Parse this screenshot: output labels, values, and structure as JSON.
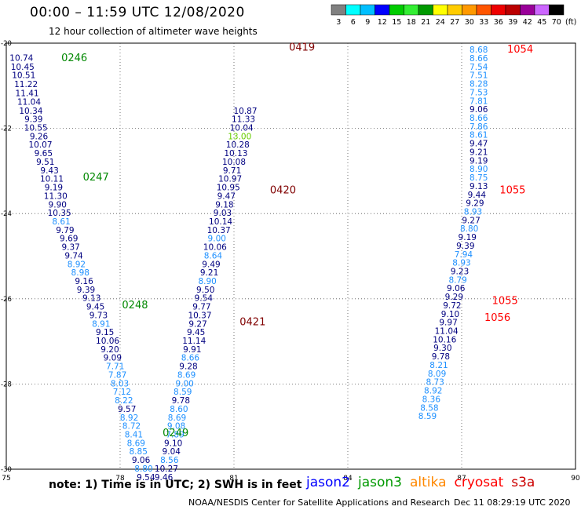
{
  "header": {
    "title": "00:00 – 11:59 UTC 12/08/2020",
    "subtitle": "12 hour collection of altimeter wave heights"
  },
  "color_scale": {
    "labels": [
      "3",
      "6",
      "9",
      "12",
      "15",
      "18",
      "21",
      "24",
      "27",
      "30",
      "33",
      "36",
      "39",
      "42",
      "45",
      "70"
    ],
    "unit": "(ft)",
    "colors": [
      "#808080",
      "#00ffff",
      "#00bfff",
      "#0000ff",
      "#00cc00",
      "#33ee33",
      "#009900",
      "#ffff00",
      "#ffcc00",
      "#ff9900",
      "#ff5500",
      "#ee0000",
      "#bb0000",
      "#990099",
      "#cc66ff",
      "#000000"
    ]
  },
  "footer": {
    "note": "note: 1) Time is in UTC; 2) SWH is in feet",
    "satellites": [
      {
        "name": "jason2",
        "color": "#0000ff"
      },
      {
        "name": "jason3",
        "color": "#009900"
      },
      {
        "name": "altika",
        "color": "#ff8800"
      },
      {
        "name": "cryosat",
        "color": "#ff0000"
      },
      {
        "name": "s3a",
        "color": "#cc0000"
      }
    ],
    "credit": "NOAA/NESDIS Center for Satellite Applications and Research",
    "processed": "Dec 11 08:29:19 UTC 2020"
  },
  "chart_data": {
    "type": "scatter",
    "xlim": [
      75,
      90
    ],
    "ylim": [
      -30,
      -20
    ],
    "xticks": [
      "75",
      "78",
      "81",
      "84",
      "87",
      "90"
    ],
    "yticks": [
      "-20",
      "-22",
      "-24",
      "-26",
      "-28",
      "-30"
    ],
    "grid": true,
    "tracks": [
      {
        "name": "0246-0249 pass",
        "color": "#000080",
        "points": [
          {
            "x": 75.4,
            "y": -20.34,
            "v": "10.74"
          },
          {
            "x": 75.43,
            "y": -20.55,
            "v": "10.45"
          },
          {
            "x": 75.46,
            "y": -20.75,
            "v": "10.51"
          },
          {
            "x": 75.52,
            "y": -20.96,
            "v": "11.22"
          },
          {
            "x": 75.55,
            "y": -21.17,
            "v": "11.41"
          },
          {
            "x": 75.6,
            "y": -21.37,
            "v": "11.04"
          },
          {
            "x": 75.65,
            "y": -21.58,
            "v": "10.34"
          },
          {
            "x": 75.72,
            "y": -21.78,
            "v": "9.39"
          },
          {
            "x": 75.78,
            "y": -21.98,
            "v": "10.55"
          },
          {
            "x": 75.86,
            "y": -22.18,
            "v": "9.26"
          },
          {
            "x": 75.9,
            "y": -22.38,
            "v": "10.07"
          },
          {
            "x": 75.98,
            "y": -22.58,
            "v": "9.65"
          },
          {
            "x": 76.03,
            "y": -22.78,
            "v": "9.51"
          },
          {
            "x": 76.14,
            "y": -22.98,
            "v": "9.43"
          },
          {
            "x": 76.2,
            "y": -23.18,
            "v": "10.11"
          },
          {
            "x": 76.25,
            "y": -23.38,
            "v": "9.19"
          },
          {
            "x": 76.3,
            "y": -23.58,
            "v": "11.30"
          },
          {
            "x": 76.35,
            "y": -23.78,
            "v": "9.90"
          },
          {
            "x": 76.4,
            "y": -23.98,
            "v": "10.35"
          },
          {
            "x": 76.45,
            "y": -24.18,
            "v": "8.61",
            "c": "#1e90ff"
          },
          {
            "x": 76.55,
            "y": -24.38,
            "v": "9.79"
          },
          {
            "x": 76.65,
            "y": -24.58,
            "v": "9.69"
          },
          {
            "x": 76.7,
            "y": -24.78,
            "v": "9.37"
          },
          {
            "x": 76.78,
            "y": -24.98,
            "v": "9.74"
          },
          {
            "x": 76.85,
            "y": -25.18,
            "v": "8.92",
            "c": "#1e90ff"
          },
          {
            "x": 76.95,
            "y": -25.38,
            "v": "8.98",
            "c": "#1e90ff"
          },
          {
            "x": 77.05,
            "y": -25.58,
            "v": "9.16"
          },
          {
            "x": 77.1,
            "y": -25.78,
            "v": "9.39"
          },
          {
            "x": 77.25,
            "y": -25.98,
            "v": "9.13"
          },
          {
            "x": 77.35,
            "y": -26.18,
            "v": "9.45"
          },
          {
            "x": 77.43,
            "y": -26.38,
            "v": "9.73"
          },
          {
            "x": 77.5,
            "y": -26.58,
            "v": "8.91",
            "c": "#1e90ff"
          },
          {
            "x": 77.6,
            "y": -26.78,
            "v": "9.15"
          },
          {
            "x": 77.67,
            "y": -26.98,
            "v": "10.06"
          },
          {
            "x": 77.73,
            "y": -27.18,
            "v": "9.20"
          },
          {
            "x": 77.8,
            "y": -27.38,
            "v": "9.09"
          },
          {
            "x": 77.87,
            "y": -27.58,
            "v": "7.71",
            "c": "#1e90ff"
          },
          {
            "x": 77.93,
            "y": -27.78,
            "v": "7.87",
            "c": "#1e90ff"
          },
          {
            "x": 77.99,
            "y": -27.98,
            "v": "8.03",
            "c": "#1e90ff"
          },
          {
            "x": 78.05,
            "y": -28.18,
            "v": "7.12",
            "c": "#1e90ff"
          },
          {
            "x": 78.1,
            "y": -28.38,
            "v": "8.22",
            "c": "#1e90ff"
          },
          {
            "x": 78.18,
            "y": -28.58,
            "v": "9.57"
          },
          {
            "x": 78.24,
            "y": -28.78,
            "v": "8.92",
            "c": "#1e90ff"
          },
          {
            "x": 78.3,
            "y": -28.98,
            "v": "8.72",
            "c": "#1e90ff"
          },
          {
            "x": 78.36,
            "y": -29.18,
            "v": "8.41",
            "c": "#1e90ff"
          },
          {
            "x": 78.42,
            "y": -29.38,
            "v": "8.69",
            "c": "#1e90ff"
          },
          {
            "x": 78.48,
            "y": -29.58,
            "v": "8.85",
            "c": "#1e90ff"
          },
          {
            "x": 78.55,
            "y": -29.78,
            "v": "9.06"
          },
          {
            "x": 78.62,
            "y": -29.98,
            "v": "8.80",
            "c": "#1e90ff"
          },
          {
            "x": 78.68,
            "y": -30.18,
            "v": "9.54"
          }
        ]
      },
      {
        "name": "0419-0421 pass",
        "color": "#000080",
        "points": [
          {
            "x": 79.15,
            "y": -30.18,
            "v": "9.46"
          },
          {
            "x": 79.22,
            "y": -29.98,
            "v": "10.27"
          },
          {
            "x": 79.3,
            "y": -29.78,
            "v": "8.56",
            "c": "#1e90ff"
          },
          {
            "x": 79.35,
            "y": -29.58,
            "v": "9.04"
          },
          {
            "x": 79.4,
            "y": -29.38,
            "v": "9.10"
          },
          {
            "x": 79.45,
            "y": -29.18,
            "v": "7.89",
            "c": "#1e90ff"
          },
          {
            "x": 79.48,
            "y": -28.98,
            "v": "9.08",
            "c": "#1e90ff"
          },
          {
            "x": 79.5,
            "y": -28.78,
            "v": "8.69",
            "c": "#1e90ff"
          },
          {
            "x": 79.55,
            "y": -28.58,
            "v": "8.60",
            "c": "#1e90ff"
          },
          {
            "x": 79.6,
            "y": -28.38,
            "v": "9.78"
          },
          {
            "x": 79.65,
            "y": -28.18,
            "v": "8.59",
            "c": "#1e90ff"
          },
          {
            "x": 79.7,
            "y": -27.98,
            "v": "9.00",
            "c": "#1e90ff"
          },
          {
            "x": 79.75,
            "y": -27.78,
            "v": "8.69",
            "c": "#1e90ff"
          },
          {
            "x": 79.8,
            "y": -27.58,
            "v": "9.28"
          },
          {
            "x": 79.85,
            "y": -27.38,
            "v": "8.66",
            "c": "#1e90ff"
          },
          {
            "x": 79.9,
            "y": -27.18,
            "v": "9.91"
          },
          {
            "x": 79.95,
            "y": -26.98,
            "v": "11.14"
          },
          {
            "x": 80.0,
            "y": -26.78,
            "v": "9.45"
          },
          {
            "x": 80.05,
            "y": -26.58,
            "v": "9.27"
          },
          {
            "x": 80.1,
            "y": -26.38,
            "v": "10.37"
          },
          {
            "x": 80.15,
            "y": -26.18,
            "v": "9.77"
          },
          {
            "x": 80.2,
            "y": -25.98,
            "v": "9.54"
          },
          {
            "x": 80.25,
            "y": -25.78,
            "v": "9.50"
          },
          {
            "x": 80.3,
            "y": -25.58,
            "v": "8.90",
            "c": "#1e90ff"
          },
          {
            "x": 80.35,
            "y": -25.38,
            "v": "9.21"
          },
          {
            "x": 80.4,
            "y": -25.18,
            "v": "9.49"
          },
          {
            "x": 80.45,
            "y": -24.98,
            "v": "8.64",
            "c": "#1e90ff"
          },
          {
            "x": 80.5,
            "y": -24.78,
            "v": "10.06"
          },
          {
            "x": 80.55,
            "y": -24.58,
            "v": "9.00",
            "c": "#1e90ff"
          },
          {
            "x": 80.6,
            "y": -24.38,
            "v": "10.37"
          },
          {
            "x": 80.65,
            "y": -24.18,
            "v": "10.14"
          },
          {
            "x": 80.7,
            "y": -23.98,
            "v": "9.03"
          },
          {
            "x": 80.75,
            "y": -23.78,
            "v": "9.18"
          },
          {
            "x": 80.8,
            "y": -23.58,
            "v": "9.47"
          },
          {
            "x": 80.85,
            "y": -23.38,
            "v": "10.95"
          },
          {
            "x": 80.9,
            "y": -23.18,
            "v": "10.97"
          },
          {
            "x": 80.95,
            "y": -22.98,
            "v": "9.71"
          },
          {
            "x": 81.0,
            "y": -22.78,
            "v": "10.08"
          },
          {
            "x": 81.05,
            "y": -22.58,
            "v": "10.13"
          },
          {
            "x": 81.1,
            "y": -22.38,
            "v": "10.28"
          },
          {
            "x": 81.15,
            "y": -22.18,
            "v": "13.00",
            "c": "#66cc00"
          },
          {
            "x": 81.2,
            "y": -21.98,
            "v": "10.04"
          },
          {
            "x": 81.25,
            "y": -21.78,
            "v": "11.33"
          },
          {
            "x": 81.3,
            "y": -21.58,
            "v": "10.87"
          }
        ]
      },
      {
        "name": "1054-1056 pass",
        "color": "#1e90ff",
        "points": [
          {
            "x": 87.45,
            "y": -20.15,
            "v": "8.68"
          },
          {
            "x": 87.45,
            "y": -20.35,
            "v": "8.66"
          },
          {
            "x": 87.45,
            "y": -20.55,
            "v": "7.54"
          },
          {
            "x": 87.45,
            "y": -20.75,
            "v": "7.51"
          },
          {
            "x": 87.45,
            "y": -20.95,
            "v": "8.28"
          },
          {
            "x": 87.45,
            "y": -21.15,
            "v": "7.53"
          },
          {
            "x": 87.45,
            "y": -21.35,
            "v": "7.81"
          },
          {
            "x": 87.45,
            "y": -21.55,
            "v": "9.06",
            "c": "#000080"
          },
          {
            "x": 87.45,
            "y": -21.75,
            "v": "8.66"
          },
          {
            "x": 87.45,
            "y": -21.95,
            "v": "7.86"
          },
          {
            "x": 87.45,
            "y": -22.15,
            "v": "8.61"
          },
          {
            "x": 87.45,
            "y": -22.35,
            "v": "9.47",
            "c": "#000080"
          },
          {
            "x": 87.45,
            "y": -22.55,
            "v": "9.21",
            "c": "#000080"
          },
          {
            "x": 87.45,
            "y": -22.75,
            "v": "9.19",
            "c": "#000080"
          },
          {
            "x": 87.45,
            "y": -22.95,
            "v": "8.90"
          },
          {
            "x": 87.45,
            "y": -23.15,
            "v": "8.75"
          },
          {
            "x": 87.45,
            "y": -23.35,
            "v": "9.13",
            "c": "#000080"
          },
          {
            "x": 87.4,
            "y": -23.55,
            "v": "9.44",
            "c": "#000080"
          },
          {
            "x": 87.35,
            "y": -23.75,
            "v": "9.29",
            "c": "#000080"
          },
          {
            "x": 87.3,
            "y": -23.95,
            "v": "8.93"
          },
          {
            "x": 87.25,
            "y": -24.15,
            "v": "9.27",
            "c": "#000080"
          },
          {
            "x": 87.2,
            "y": -24.35,
            "v": "8.80"
          },
          {
            "x": 87.15,
            "y": -24.55,
            "v": "9.19",
            "c": "#000080"
          },
          {
            "x": 87.1,
            "y": -24.75,
            "v": "9.39",
            "c": "#000080"
          },
          {
            "x": 87.05,
            "y": -24.95,
            "v": "7.94"
          },
          {
            "x": 87.0,
            "y": -25.15,
            "v": "8.93"
          },
          {
            "x": 86.95,
            "y": -25.35,
            "v": "9.23",
            "c": "#000080"
          },
          {
            "x": 86.9,
            "y": -25.55,
            "v": "8.79"
          },
          {
            "x": 86.85,
            "y": -25.75,
            "v": "9.06",
            "c": "#000080"
          },
          {
            "x": 86.8,
            "y": -25.95,
            "v": "9.29",
            "c": "#000080"
          },
          {
            "x": 86.75,
            "y": -26.15,
            "v": "9.72",
            "c": "#000080"
          },
          {
            "x": 86.7,
            "y": -26.35,
            "v": "9.10",
            "c": "#000080"
          },
          {
            "x": 86.65,
            "y": -26.55,
            "v": "9.97",
            "c": "#000080"
          },
          {
            "x": 86.6,
            "y": -26.75,
            "v": "11.04",
            "c": "#000080"
          },
          {
            "x": 86.55,
            "y": -26.95,
            "v": "10.16",
            "c": "#000080"
          },
          {
            "x": 86.5,
            "y": -27.15,
            "v": "9.30",
            "c": "#000080"
          },
          {
            "x": 86.45,
            "y": -27.35,
            "v": "9.78",
            "c": "#000080"
          },
          {
            "x": 86.4,
            "y": -27.55,
            "v": "8.21"
          },
          {
            "x": 86.35,
            "y": -27.75,
            "v": "8.09"
          },
          {
            "x": 86.3,
            "y": -27.95,
            "v": "8.73"
          },
          {
            "x": 86.25,
            "y": -28.15,
            "v": "8.92"
          },
          {
            "x": 86.2,
            "y": -28.35,
            "v": "8.36"
          },
          {
            "x": 86.15,
            "y": -28.55,
            "v": "8.58"
          },
          {
            "x": 86.1,
            "y": -28.75,
            "v": "8.59"
          }
        ]
      }
    ],
    "annotations": [
      {
        "text": "0246",
        "x": 76.45,
        "y": -20.35,
        "color": "#008800"
      },
      {
        "text": "0247",
        "x": 77.02,
        "y": -23.15,
        "color": "#008800"
      },
      {
        "text": "0248",
        "x": 78.05,
        "y": -26.15,
        "color": "#008800"
      },
      {
        "text": "0249",
        "x": 79.12,
        "y": -29.15,
        "color": "#008800"
      },
      {
        "text": "0419",
        "x": 82.45,
        "y": -20.1,
        "color": "#800000"
      },
      {
        "text": "0420",
        "x": 81.95,
        "y": -23.45,
        "color": "#800000"
      },
      {
        "text": "0421",
        "x": 81.15,
        "y": -26.55,
        "color": "#800000"
      },
      {
        "text": "1054",
        "x": 88.2,
        "y": -20.15,
        "color": "#ff0000"
      },
      {
        "text": "1055",
        "x": 88.0,
        "y": -23.45,
        "color": "#ff0000"
      },
      {
        "text": "1055",
        "x": 87.8,
        "y": -26.05,
        "color": "#ff0000"
      },
      {
        "text": "1056",
        "x": 87.6,
        "y": -26.45,
        "color": "#ff0000"
      }
    ]
  }
}
